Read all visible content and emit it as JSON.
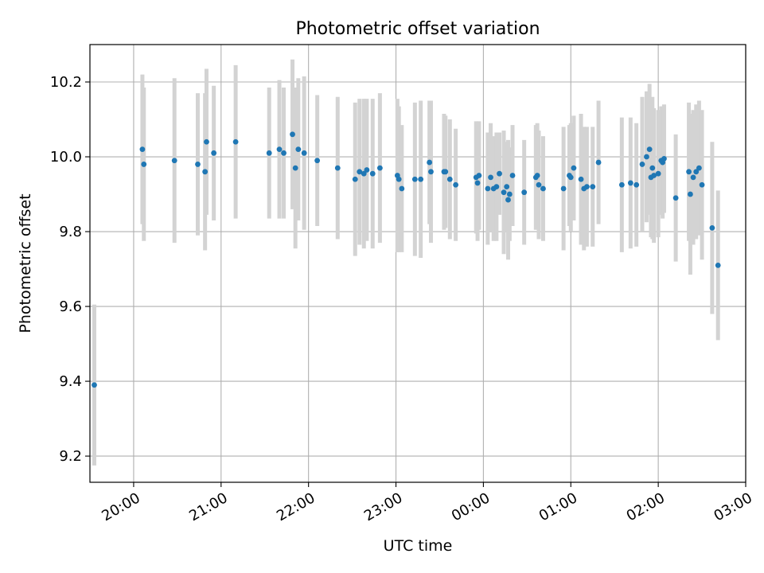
{
  "chart_data": {
    "type": "scatter",
    "title": "Photometric offset variation",
    "xlabel": "UTC time",
    "ylabel": "Photometric offset",
    "x_is_time": true,
    "xlim": [
      "2023-01-01T19:30",
      "2023-01-02T03:00"
    ],
    "ylim": [
      9.13,
      10.3
    ],
    "x_tick_labels": [
      "20:00",
      "21:00",
      "22:00",
      "23:00",
      "00:00",
      "01:00",
      "02:00",
      "03:00"
    ],
    "x_tick_values": [
      "2023-01-01T20:00",
      "2023-01-01T21:00",
      "2023-01-01T22:00",
      "2023-01-01T23:00",
      "2023-01-02T00:00",
      "2023-01-02T01:00",
      "2023-01-02T02:00",
      "2023-01-02T03:00"
    ],
    "y_tick_labels": [
      "9.2",
      "9.4",
      "9.6",
      "9.8",
      "10.0",
      "10.2"
    ],
    "y_tick_values": [
      9.2,
      9.4,
      9.6,
      9.8,
      10.0,
      10.2
    ],
    "grid": true,
    "colors": {
      "point": "#1f77b4",
      "errorbar": "#d3d3d3",
      "grid": "#b0b0b0",
      "axes": "#000000"
    },
    "series": [
      {
        "x": [
          "2023-01-01T19:33",
          "2023-01-01T20:06",
          "2023-01-01T20:07",
          "2023-01-01T20:28",
          "2023-01-01T20:44",
          "2023-01-01T20:49",
          "2023-01-01T20:50",
          "2023-01-01T20:55",
          "2023-01-01T21:10",
          "2023-01-01T21:33",
          "2023-01-01T21:40",
          "2023-01-01T21:43",
          "2023-01-01T21:49",
          "2023-01-01T21:51",
          "2023-01-01T21:53",
          "2023-01-01T21:57",
          "2023-01-01T22:06",
          "2023-01-01T22:20",
          "2023-01-01T22:32",
          "2023-01-01T22:35",
          "2023-01-01T22:38",
          "2023-01-01T22:40",
          "2023-01-01T22:44",
          "2023-01-01T22:49",
          "2023-01-01T23:01",
          "2023-01-01T23:02",
          "2023-01-01T23:04",
          "2023-01-01T23:13",
          "2023-01-01T23:17",
          "2023-01-01T23:23",
          "2023-01-01T23:24",
          "2023-01-01T23:33",
          "2023-01-01T23:34",
          "2023-01-01T23:37",
          "2023-01-01T23:41",
          "2023-01-01T23:55",
          "2023-01-01T23:56",
          "2023-01-01T23:57",
          "2023-01-02T00:03",
          "2023-01-02T00:05",
          "2023-01-02T00:07",
          "2023-01-02T00:09",
          "2023-01-02T00:11",
          "2023-01-02T00:14",
          "2023-01-02T00:16",
          "2023-01-02T00:17",
          "2023-01-02T00:18",
          "2023-01-02T00:20",
          "2023-01-02T00:28",
          "2023-01-02T00:36",
          "2023-01-02T00:37",
          "2023-01-02T00:38",
          "2023-01-02T00:41",
          "2023-01-02T00:55",
          "2023-01-02T00:59",
          "2023-01-02T01:00",
          "2023-01-02T01:02",
          "2023-01-02T01:07",
          "2023-01-02T01:09",
          "2023-01-02T01:11",
          "2023-01-02T01:15",
          "2023-01-02T01:19",
          "2023-01-02T01:35",
          "2023-01-02T01:41",
          "2023-01-02T01:45",
          "2023-01-02T01:49",
          "2023-01-02T01:52",
          "2023-01-02T01:54",
          "2023-01-02T01:55",
          "2023-01-02T01:56",
          "2023-01-02T01:57",
          "2023-01-02T02:00",
          "2023-01-02T02:02",
          "2023-01-02T02:03",
          "2023-01-02T02:04",
          "2023-01-02T02:12",
          "2023-01-02T02:21",
          "2023-01-02T02:22",
          "2023-01-02T02:24",
          "2023-01-02T02:26",
          "2023-01-02T02:28",
          "2023-01-02T02:30",
          "2023-01-02T02:37",
          "2023-01-02T02:41"
        ],
        "y": [
          9.39,
          10.02,
          9.98,
          9.99,
          9.98,
          9.96,
          10.04,
          10.01,
          10.04,
          10.01,
          10.02,
          10.01,
          10.06,
          9.97,
          10.02,
          10.01,
          9.99,
          9.97,
          9.94,
          9.96,
          9.955,
          9.965,
          9.955,
          9.97,
          9.95,
          9.94,
          9.915,
          9.94,
          9.94,
          9.985,
          9.96,
          9.96,
          9.96,
          9.94,
          9.925,
          9.945,
          9.93,
          9.95,
          9.915,
          9.945,
          9.915,
          9.92,
          9.955,
          9.905,
          9.92,
          9.885,
          9.9,
          9.95,
          9.905,
          9.945,
          9.95,
          9.925,
          9.915,
          9.915,
          9.95,
          9.945,
          9.97,
          9.94,
          9.915,
          9.92,
          9.92,
          9.985,
          9.925,
          9.93,
          9.925,
          9.98,
          10.0,
          10.02,
          9.945,
          9.97,
          9.95,
          9.955,
          9.99,
          9.985,
          9.995,
          9.89,
          9.96,
          9.9,
          9.945,
          9.96,
          9.97,
          9.925,
          9.81,
          9.71
        ],
        "err": [
          0.215,
          0.2,
          0.205,
          0.22,
          0.19,
          0.21,
          0.195,
          0.18,
          0.205,
          0.175,
          0.185,
          0.175,
          0.2,
          0.215,
          0.19,
          0.205,
          0.175,
          0.19,
          0.205,
          0.195,
          0.2,
          0.19,
          0.2,
          0.2,
          0.205,
          0.195,
          0.17,
          0.205,
          0.21,
          0.165,
          0.19,
          0.155,
          0.15,
          0.16,
          0.15,
          0.15,
          0.155,
          0.145,
          0.15,
          0.145,
          0.14,
          0.145,
          0.11,
          0.165,
          0.12,
          0.16,
          0.125,
          0.135,
          0.14,
          0.14,
          0.14,
          0.145,
          0.14,
          0.165,
          0.135,
          0.145,
          0.14,
          0.175,
          0.165,
          0.16,
          0.16,
          0.165,
          0.18,
          0.175,
          0.165,
          0.18,
          0.175,
          0.175,
          0.16,
          0.19,
          0.18,
          0.17,
          0.145,
          0.15,
          0.145,
          0.17,
          0.185,
          0.215,
          0.18,
          0.18,
          0.18,
          0.2,
          0.23,
          0.2
        ]
      }
    ]
  }
}
